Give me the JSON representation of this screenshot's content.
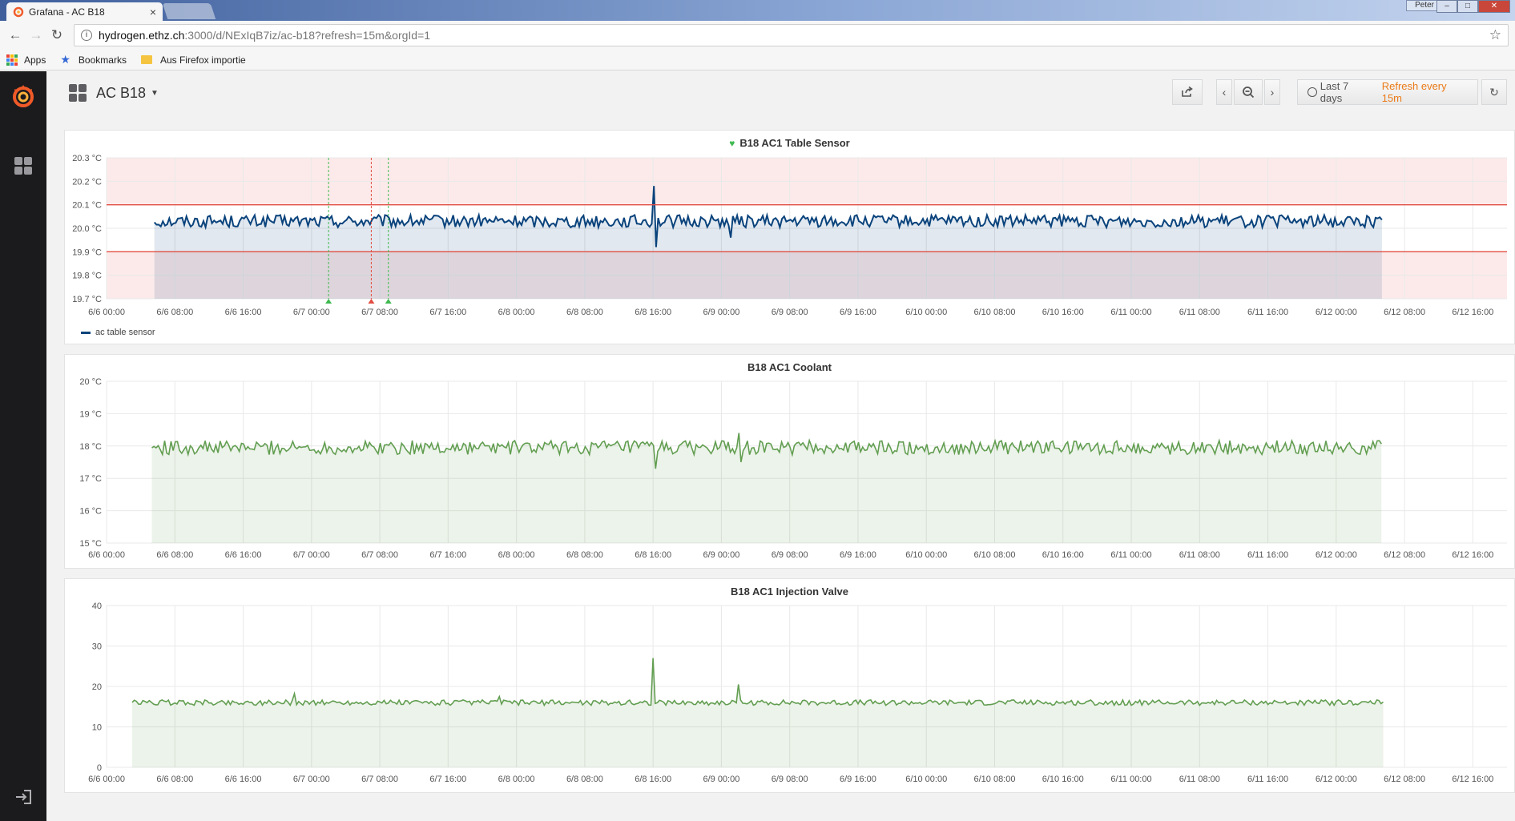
{
  "browser": {
    "tab_title": "Grafana - AC B18",
    "tab_close": "×",
    "user": "Peter",
    "url_host": "hydrogen.ethz.ch",
    "url_rest": ":3000/d/NExIqB7iz/ac-b18?refresh=15m&orgId=1",
    "bookmarks": [
      "Apps",
      "Bookmarks",
      "Aus Firefox importie"
    ]
  },
  "dashboard": {
    "title": "AC B18",
    "time_range": "Last 7 days",
    "refresh": "Refresh every 15m"
  },
  "colors": {
    "table_sensor_line": "#0a437c",
    "green_series": "#629e51",
    "threshold": "#e24d42"
  },
  "x_ticks": [
    "6/6 00:00",
    "6/6 08:00",
    "6/6 16:00",
    "6/7 00:00",
    "6/7 08:00",
    "6/7 16:00",
    "6/8 00:00",
    "6/8 08:00",
    "6/8 16:00",
    "6/9 00:00",
    "6/9 08:00",
    "6/9 16:00",
    "6/10 00:00",
    "6/10 08:00",
    "6/10 16:00",
    "6/11 00:00",
    "6/11 08:00",
    "6/11 16:00",
    "6/12 00:00",
    "6/12 08:00",
    "6/12 16:00"
  ],
  "panels": [
    {
      "title": "B18 AC1 Table Sensor",
      "legend": "ac table sensor",
      "chart_data": {
        "type": "line",
        "y_ticks": [
          "20.3 °C",
          "20.2 °C",
          "20.1 °C",
          "20.0 °C",
          "19.9 °C",
          "19.8 °C",
          "19.7 °C"
        ],
        "ylim": [
          19.7,
          20.3
        ],
        "x_range_hours": [
          0,
          164
        ],
        "series": [
          {
            "name": "ac table sensor",
            "x_start_hour": 5.6,
            "x_end_hour": 149.5,
            "baseline": 20.03,
            "noise": 0.012,
            "events": [
              {
                "hour": 64.0,
                "values": [
                  20.18,
                  19.92
                ]
              },
              {
                "hour": 73.0,
                "values": [
                  19.96
                ]
              }
            ]
          }
        ],
        "thresholds": [
          20.1,
          19.9
        ],
        "annotations": [
          {
            "hour": 26.0,
            "color": "#3fb950"
          },
          {
            "hour": 31.0,
            "color": "#e24d42"
          },
          {
            "hour": 33.0,
            "color": "#3fb950"
          }
        ]
      }
    },
    {
      "title": "B18 AC1 Coolant",
      "chart_data": {
        "type": "area",
        "y_ticks": [
          "20 °C",
          "19 °C",
          "18 °C",
          "17 °C",
          "16 °C",
          "15 °C"
        ],
        "ylim": [
          15,
          20
        ],
        "x_range_hours": [
          0,
          164
        ],
        "series": [
          {
            "x_start_hour": 5.3,
            "x_end_hour": 149.5,
            "baseline": 17.95,
            "noise": 0.1,
            "events": [
              {
                "hour": 64.2,
                "values": [
                  17.3
                ]
              },
              {
                "hour": 74.0,
                "values": [
                  18.4,
                  17.5
                ]
              }
            ]
          }
        ]
      }
    },
    {
      "title": "B18 AC1 Injection Valve",
      "chart_data": {
        "type": "area",
        "y_ticks": [
          "40",
          "30",
          "20",
          "10",
          "0"
        ],
        "ylim": [
          0,
          40
        ],
        "x_range_hours": [
          0,
          164
        ],
        "series": [
          {
            "x_start_hour": 3.0,
            "x_end_hour": 149.5,
            "baseline": 16.0,
            "noise": 0.3,
            "events": [
              {
                "hour": 22.0,
                "values": [
                  18.2
                ]
              },
              {
                "hour": 46.0,
                "values": [
                  17.5
                ]
              },
              {
                "hour": 64.0,
                "values": [
                  27.0
                ]
              },
              {
                "hour": 74.0,
                "values": [
                  20.5
                ]
              }
            ]
          }
        ]
      }
    }
  ]
}
